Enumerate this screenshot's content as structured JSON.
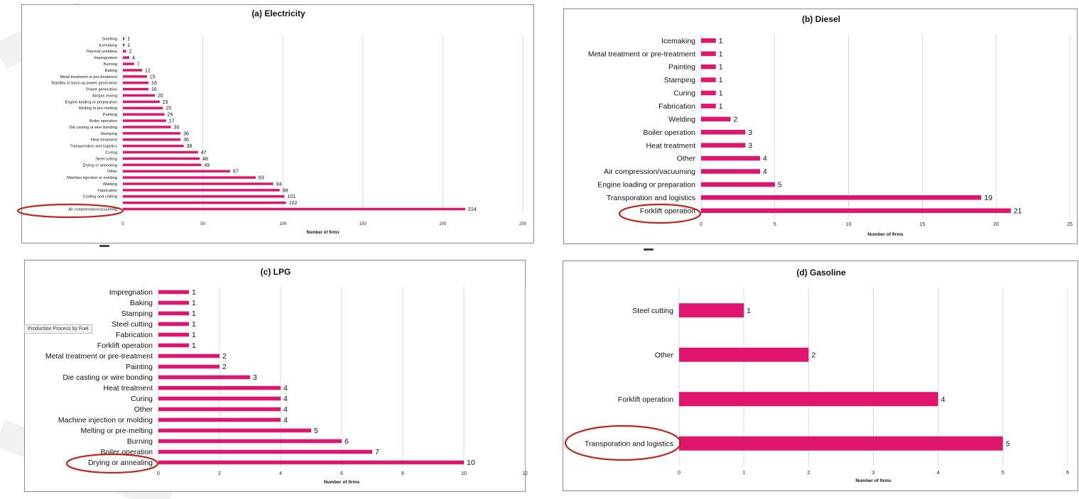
{
  "tooltip": "Production Process by Fuel",
  "colors": {
    "bar": "#e0166e",
    "highlight_ring": "#c0261e",
    "grid": "#d8d8d8"
  },
  "chart_data": [
    {
      "id": "electricity",
      "type": "bar",
      "orientation": "horizontal",
      "title": "(a) Electricity",
      "xlabel": "Number of firms",
      "xlim": [
        0,
        250
      ],
      "xticks": [
        0,
        50,
        100,
        150,
        200,
        250
      ],
      "highlighted": "Air compression/vacuuming",
      "categories": [
        "Smelting",
        "Icemaking",
        "Thermal oxidation",
        "Impregnation",
        "Burning",
        "Baking",
        "Metal treatment or pre-treatment",
        "Standby or back-up power generation",
        "Power generation",
        "Air/gas mixing",
        "Engine loading or preparation",
        "Melting or pre-melting",
        "Painting",
        "Boiler operation",
        "Die casting or wire bonding",
        "Stamping",
        "Heat treatment",
        "Transporation and logistics",
        "Curing",
        "Steel cutting",
        "Drying or annealing",
        "Other",
        "Machine injection or molding",
        "Welding",
        "Fabrication",
        "Cooling and chilling",
        "",
        "Air compression/vacuuming"
      ],
      "values": [
        1,
        1,
        2,
        4,
        7,
        12,
        15,
        16,
        16,
        20,
        23,
        25,
        26,
        27,
        30,
        36,
        36,
        38,
        47,
        48,
        49,
        67,
        83,
        94,
        98,
        101,
        102,
        214
      ],
      "value_labels": [
        "1",
        "1",
        "2",
        "4",
        "7",
        "12",
        "15",
        "16",
        "16",
        "20",
        "23",
        "25",
        "26",
        "27",
        "30",
        "36",
        "36",
        "38",
        "47",
        "48",
        "49",
        "67",
        "83",
        "94",
        "98",
        "101",
        "102",
        "214"
      ]
    },
    {
      "id": "diesel",
      "type": "bar",
      "orientation": "horizontal",
      "title": "(b) Diesel",
      "xlabel": "Number of firms",
      "xlim": [
        0,
        25
      ],
      "xticks": [
        0,
        5,
        10,
        15,
        20,
        25
      ],
      "highlighted": "Forklift operation",
      "categories": [
        "Icemaking",
        "Metal treatment or pre-treatment",
        "Painting",
        "Stamping",
        "Curing",
        "Fabrication",
        "Welding",
        "Boiler operation",
        "Heat treatment",
        "Other",
        "Air compression/vacuuming",
        "Engine loading or preparation",
        "Transporation and logistics",
        "Forklift operation"
      ],
      "values": [
        1,
        1,
        1,
        1,
        1,
        1,
        2,
        3,
        3,
        4,
        4,
        5,
        19,
        21
      ],
      "value_labels": [
        "1",
        "1",
        "1",
        "1",
        "1",
        "1",
        "2",
        "3",
        "3",
        "4",
        "4",
        "5",
        "19",
        "21"
      ]
    },
    {
      "id": "lpg",
      "type": "bar",
      "orientation": "horizontal",
      "title": "(c) LPG",
      "xlabel": "Number of firms",
      "xlim": [
        0,
        12
      ],
      "xticks": [
        0,
        2,
        4,
        6,
        8,
        10,
        12
      ],
      "highlighted": "Drying or annealing",
      "categories": [
        "Impregnation",
        "Baking",
        "Stamping",
        "Steel cutting",
        "Fabrication",
        "Forklift operation",
        "Metal treatment or pre-treatment",
        "Painting",
        "Die casting or wire bonding",
        "Heat treatment",
        "Curing",
        "Other",
        "Machine injection or molding",
        "Melting or pre-melting",
        "Burning",
        "Boiler operation",
        "Drying or annealing"
      ],
      "values": [
        1,
        1,
        1,
        1,
        1,
        1,
        2,
        2,
        3,
        4,
        4,
        4,
        4,
        5,
        6,
        7,
        10
      ],
      "value_labels": [
        "1",
        "1",
        "1",
        "1",
        "1",
        "1",
        "2",
        "2",
        "3",
        "4",
        "4",
        "4",
        "4",
        "5",
        "6",
        "7",
        "10"
      ]
    },
    {
      "id": "gasoline",
      "type": "bar",
      "orientation": "horizontal",
      "title": "(d) Gasoline",
      "xlabel": "Number of firms",
      "xlim": [
        0,
        6
      ],
      "xticks": [
        0,
        1,
        2,
        3,
        4,
        5,
        6
      ],
      "highlighted": "Transporation and logistics",
      "categories": [
        "Steel cutting",
        "Other",
        "Forklift operation",
        "Transporation and logistics"
      ],
      "values": [
        1,
        2,
        4,
        5
      ],
      "value_labels": [
        "1",
        "2",
        "4",
        "5"
      ]
    }
  ]
}
